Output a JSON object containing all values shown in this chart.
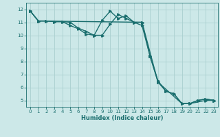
{
  "title": "",
  "xlabel": "Humidex (Indice chaleur)",
  "ylabel": "",
  "xlim": [
    -0.5,
    23.5
  ],
  "ylim": [
    4.5,
    12.5
  ],
  "yticks": [
    5,
    6,
    7,
    8,
    9,
    10,
    11,
    12
  ],
  "xticks": [
    0,
    1,
    2,
    3,
    4,
    5,
    6,
    7,
    8,
    9,
    10,
    11,
    12,
    13,
    14,
    15,
    16,
    17,
    18,
    19,
    20,
    21,
    22,
    23
  ],
  "bg_color": "#cce8e8",
  "grid_color": "#aad0d0",
  "line_color": "#1a6e6e",
  "line1_x": [
    0,
    1,
    2,
    3,
    4,
    5,
    6,
    7,
    8,
    9,
    10,
    11,
    12,
    13,
    14,
    15,
    16,
    17,
    18,
    19,
    20,
    21,
    22,
    23
  ],
  "line1_y": [
    11.85,
    11.1,
    11.1,
    11.05,
    11.05,
    10.75,
    10.5,
    10.1,
    10.0,
    11.15,
    11.85,
    11.3,
    11.5,
    11.0,
    11.0,
    8.4,
    6.5,
    5.7,
    5.5,
    4.75,
    4.75,
    5.0,
    5.1,
    5.0
  ],
  "line2_x": [
    0,
    1,
    2,
    3,
    4,
    5,
    6,
    7,
    8,
    9,
    10,
    11,
    12,
    13,
    14,
    15,
    16,
    17,
    18,
    19,
    20,
    21,
    22,
    23
  ],
  "line2_y": [
    11.85,
    11.1,
    11.1,
    11.05,
    11.05,
    11.0,
    10.55,
    10.3,
    10.0,
    10.0,
    10.85,
    11.6,
    11.3,
    11.0,
    10.75,
    8.4,
    6.4,
    5.7,
    5.5,
    4.75,
    4.75,
    5.0,
    5.1,
    5.0
  ],
  "line3_x": [
    0,
    1,
    14,
    16,
    19,
    20,
    22,
    23
  ],
  "line3_y": [
    11.85,
    11.1,
    11.0,
    6.4,
    4.75,
    4.75,
    5.0,
    5.0
  ],
  "marker_size": 2.5,
  "linewidth": 1.0
}
